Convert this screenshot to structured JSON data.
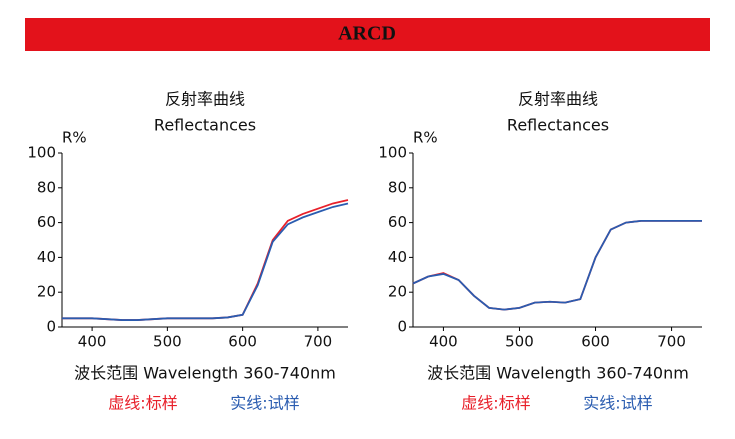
{
  "banner": "ARCD",
  "chart_data": [
    {
      "type": "line",
      "title": "反射率曲线",
      "subtitle": "Reflectances",
      "y_label": "R%",
      "x_label": "波长范围 Wavelength 360-740nm",
      "x": [
        360,
        380,
        400,
        420,
        440,
        460,
        480,
        500,
        520,
        540,
        560,
        580,
        600,
        620,
        640,
        660,
        680,
        700,
        720,
        740
      ],
      "xlim": [
        360,
        740
      ],
      "xticks": [
        400,
        500,
        600,
        700
      ],
      "ylim": [
        0,
        100
      ],
      "yticks": [
        0,
        20,
        40,
        60,
        80,
        100
      ],
      "legend": "bottom",
      "series": [
        {
          "name": "虚线:标样",
          "color": "#e8202a",
          "values": [
            5,
            5,
            5,
            4.5,
            4,
            4,
            4.5,
            5,
            5,
            5,
            5,
            5.5,
            7,
            25,
            50,
            61,
            65,
            68,
            71,
            73
          ]
        },
        {
          "name": "实线:试样",
          "color": "#2a5cb0",
          "values": [
            5,
            5,
            5,
            4.5,
            4,
            4,
            4.5,
            5,
            5,
            5,
            5,
            5.5,
            7,
            24,
            49,
            59,
            63,
            66,
            69,
            71
          ]
        }
      ]
    },
    {
      "type": "line",
      "title": "反射率曲线",
      "subtitle": "Reflectances",
      "y_label": "R%",
      "x_label": "波长范围 Wavelength 360-740nm",
      "x": [
        360,
        380,
        400,
        420,
        440,
        460,
        480,
        500,
        520,
        540,
        560,
        580,
        600,
        620,
        640,
        660,
        680,
        700,
        720,
        740
      ],
      "xlim": [
        360,
        740
      ],
      "xticks": [
        400,
        500,
        600,
        700
      ],
      "ylim": [
        0,
        100
      ],
      "yticks": [
        0,
        20,
        40,
        60,
        80,
        100
      ],
      "legend": "bottom",
      "series": [
        {
          "name": "虚线:标样",
          "color": "#e8202a",
          "values": [
            25,
            29,
            31,
            27,
            18,
            11,
            10,
            11,
            14,
            14.5,
            14,
            16,
            40,
            56,
            60,
            61,
            61,
            61,
            61,
            61
          ]
        },
        {
          "name": "实线:试样",
          "color": "#2a5cb0",
          "values": [
            25,
            29,
            30.5,
            27,
            18,
            11,
            10,
            11,
            14,
            14.5,
            14,
            16,
            40,
            56,
            60,
            61,
            61,
            61,
            61,
            61
          ]
        }
      ]
    }
  ]
}
